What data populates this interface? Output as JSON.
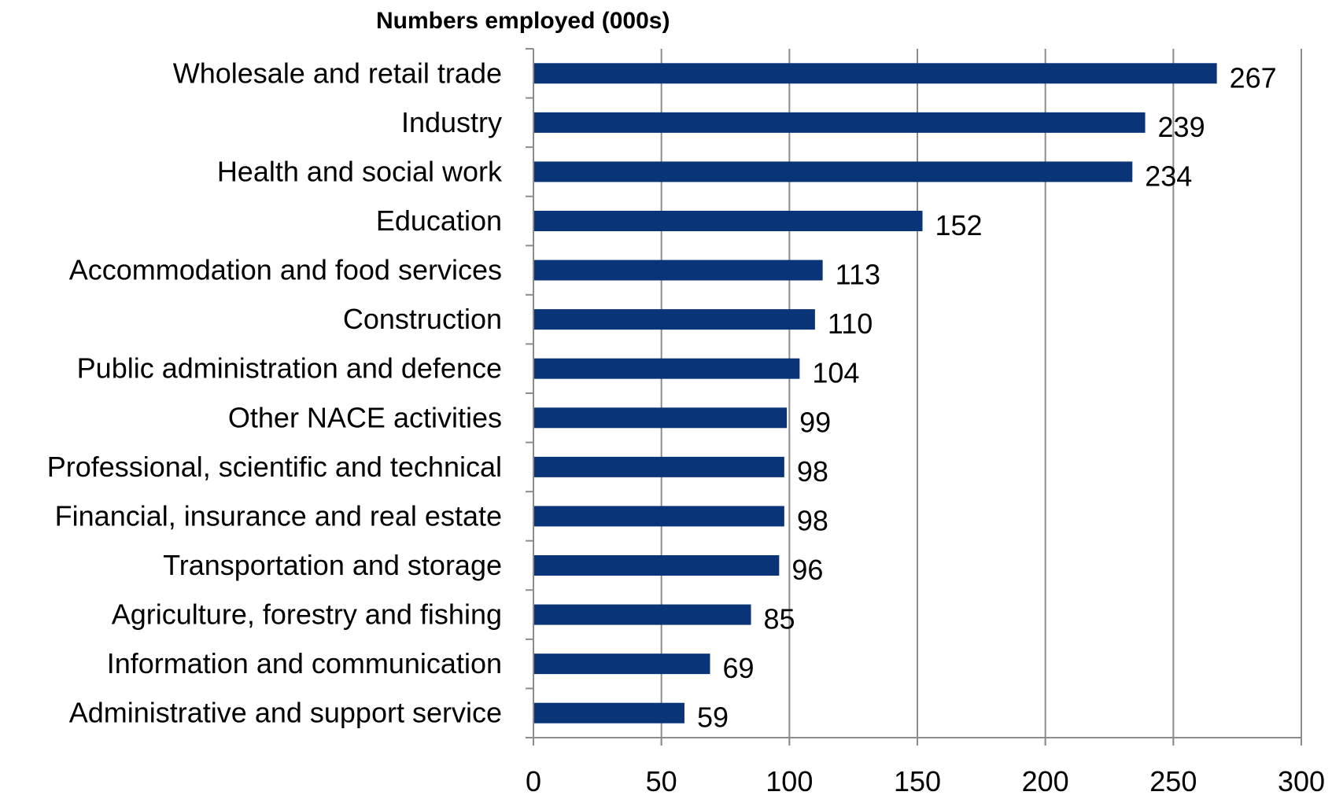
{
  "chart_data": {
    "type": "bar",
    "orientation": "horizontal",
    "title": "Numbers employed (000s)",
    "categories": [
      "Wholesale and retail trade",
      "Industry",
      "Health and social work",
      "Education",
      "Accommodation and food services",
      "Construction",
      "Public administration and defence",
      "Other NACE activities",
      "Professional, scientific and technical",
      "Financial, insurance and real estate",
      "Transportation and storage",
      "Agriculture, forestry and fishing",
      "Information and communication",
      "Administrative and support service"
    ],
    "values": [
      267,
      239,
      234,
      152,
      113,
      110,
      104,
      99,
      98,
      98,
      96,
      85,
      69,
      59
    ],
    "xlim": [
      0,
      300
    ],
    "xticks": [
      0,
      50,
      100,
      150,
      200,
      250,
      300
    ],
    "grid": "vertical",
    "legend": "none",
    "bar_color": "#0a3478"
  }
}
